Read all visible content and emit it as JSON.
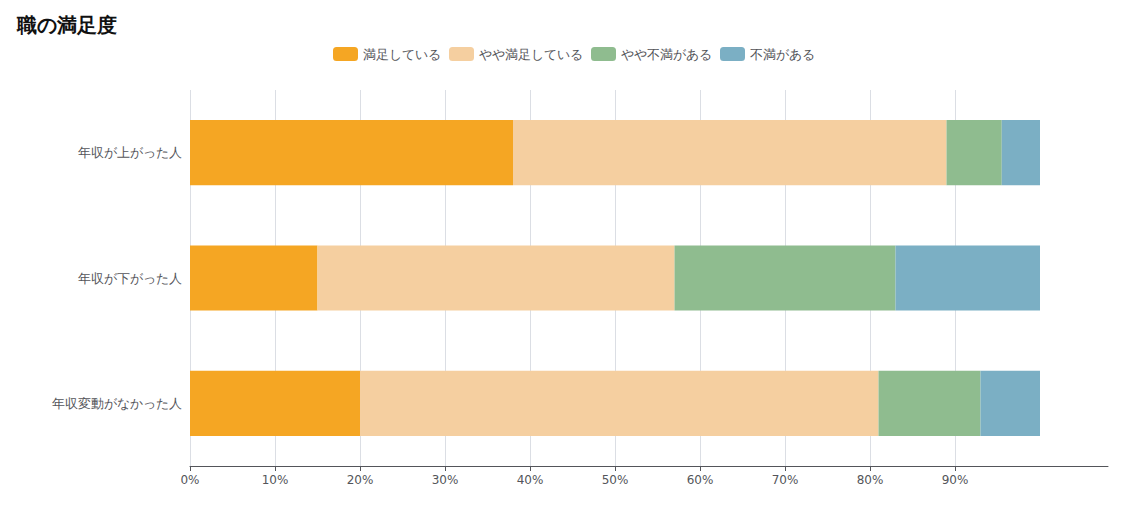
{
  "chart_data": {
    "type": "bar",
    "orientation": "horizontal",
    "stacked": true,
    "title": "職の満足度",
    "categories": [
      "年収が上がった人",
      "年収が下がった人",
      "年収変動がなかった人"
    ],
    "series": [
      {
        "name": "満足している",
        "color": "#F5A623",
        "values": [
          38.0,
          15.0,
          20.0
        ]
      },
      {
        "name": "やや満足している",
        "color": "#F5CFA0",
        "values": [
          51.0,
          42.0,
          61.0
        ]
      },
      {
        "name": "やや不満がある",
        "color": "#8FBC8F",
        "values": [
          6.5,
          26.0,
          12.0
        ]
      },
      {
        "name": "不満がある",
        "color": "#7BAFC4",
        "values": [
          4.5,
          17.0,
          7.0
        ]
      }
    ],
    "xlim": [
      0,
      108
    ],
    "xticks": [
      {
        "value": 0,
        "label": "0%"
      },
      {
        "value": 10,
        "label": "10%"
      },
      {
        "value": 20,
        "label": "20%"
      },
      {
        "value": 30,
        "label": "30%"
      },
      {
        "value": 40,
        "label": "40%"
      },
      {
        "value": 50,
        "label": "50%"
      },
      {
        "value": 60,
        "label": "60%"
      },
      {
        "value": 70,
        "label": "70%"
      },
      {
        "value": 80,
        "label": "80%"
      },
      {
        "value": 90,
        "label": "90%"
      }
    ],
    "grid": true,
    "legend": "top"
  }
}
